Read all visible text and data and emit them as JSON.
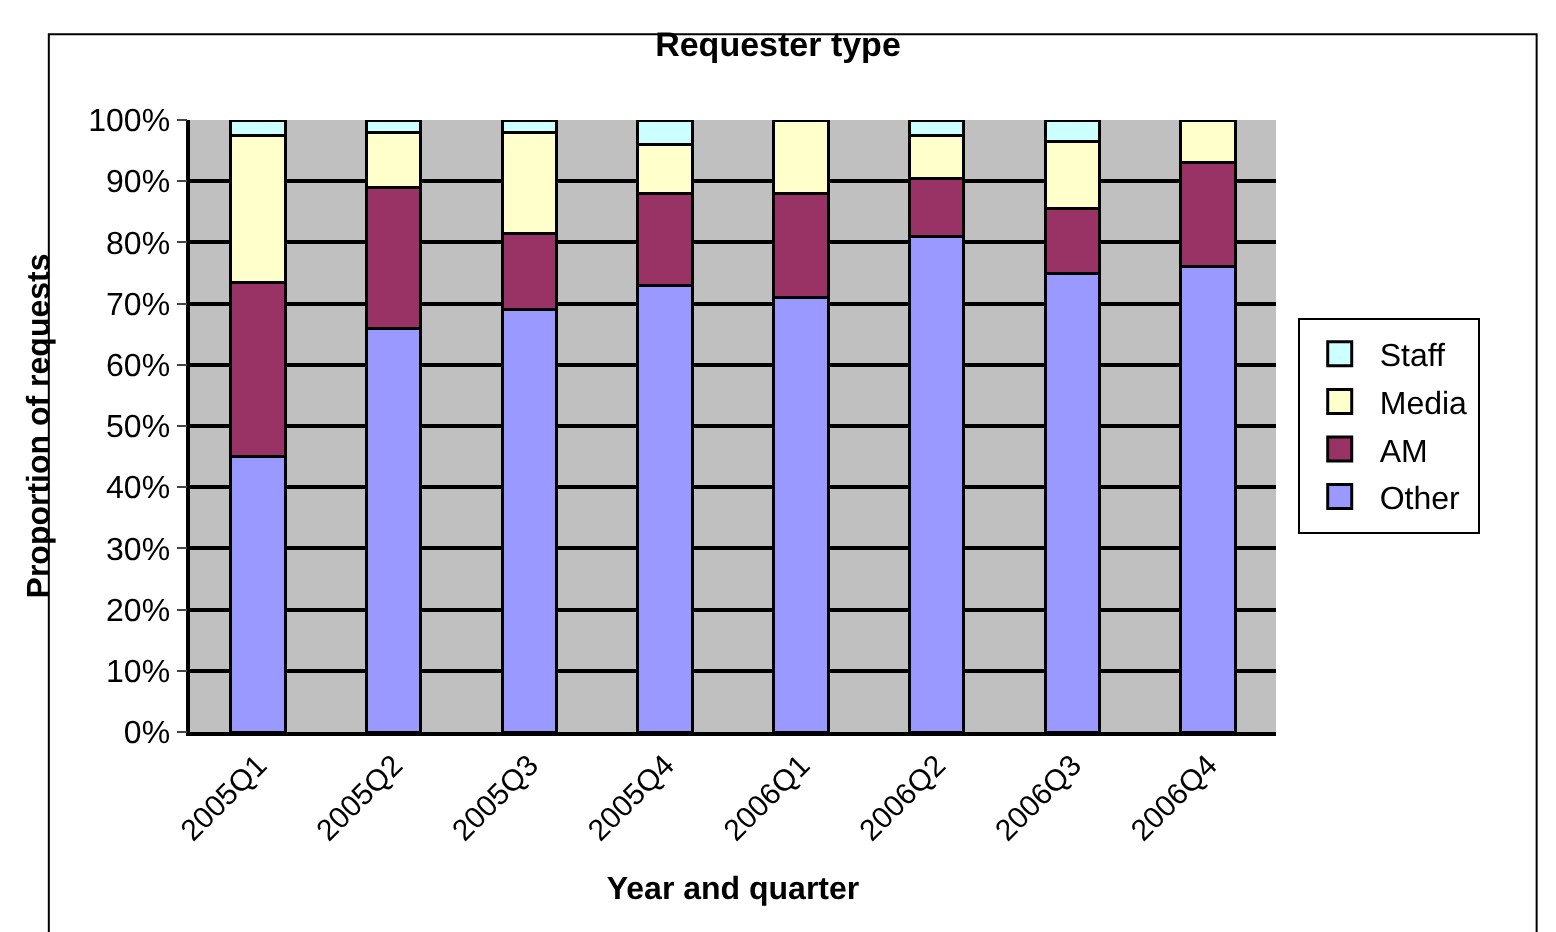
{
  "chart_data": {
    "type": "bar",
    "title": "Requester type",
    "xlabel": "Year and quarter",
    "ylabel": "Proportion of requests",
    "categories": [
      "2005Q1",
      "2005Q2",
      "2005Q3",
      "2005Q4",
      "2006Q1",
      "2006Q2",
      "2006Q3",
      "2006Q4"
    ],
    "stacked": true,
    "series": [
      {
        "name": "Other",
        "color": "#9999ff",
        "values": [
          45,
          66,
          69,
          73,
          71,
          81,
          75,
          76
        ]
      },
      {
        "name": "AM",
        "color": "#993366",
        "values": [
          28.5,
          23,
          12.5,
          15,
          17,
          9.5,
          10.5,
          17
        ]
      },
      {
        "name": "Media",
        "color": "#ffffcc",
        "values": [
          24,
          9,
          16.5,
          8,
          12,
          7,
          11,
          7
        ]
      },
      {
        "name": "Staff",
        "color": "#ccffff",
        "values": [
          2.5,
          2,
          2,
          4,
          0,
          2.5,
          3.5,
          0
        ]
      }
    ],
    "ylim": [
      0,
      100
    ],
    "yticks": [
      {
        "value": 0,
        "label": "0%"
      },
      {
        "value": 10,
        "label": "10%"
      },
      {
        "value": 20,
        "label": "20%"
      },
      {
        "value": 30,
        "label": "30%"
      },
      {
        "value": 40,
        "label": "40%"
      },
      {
        "value": 50,
        "label": "50%"
      },
      {
        "value": 60,
        "label": "60%"
      },
      {
        "value": 70,
        "label": "70%"
      },
      {
        "value": 80,
        "label": "80%"
      },
      {
        "value": 90,
        "label": "90%"
      },
      {
        "value": 100,
        "label": "100%"
      }
    ],
    "grid": "y",
    "legend": "right"
  }
}
